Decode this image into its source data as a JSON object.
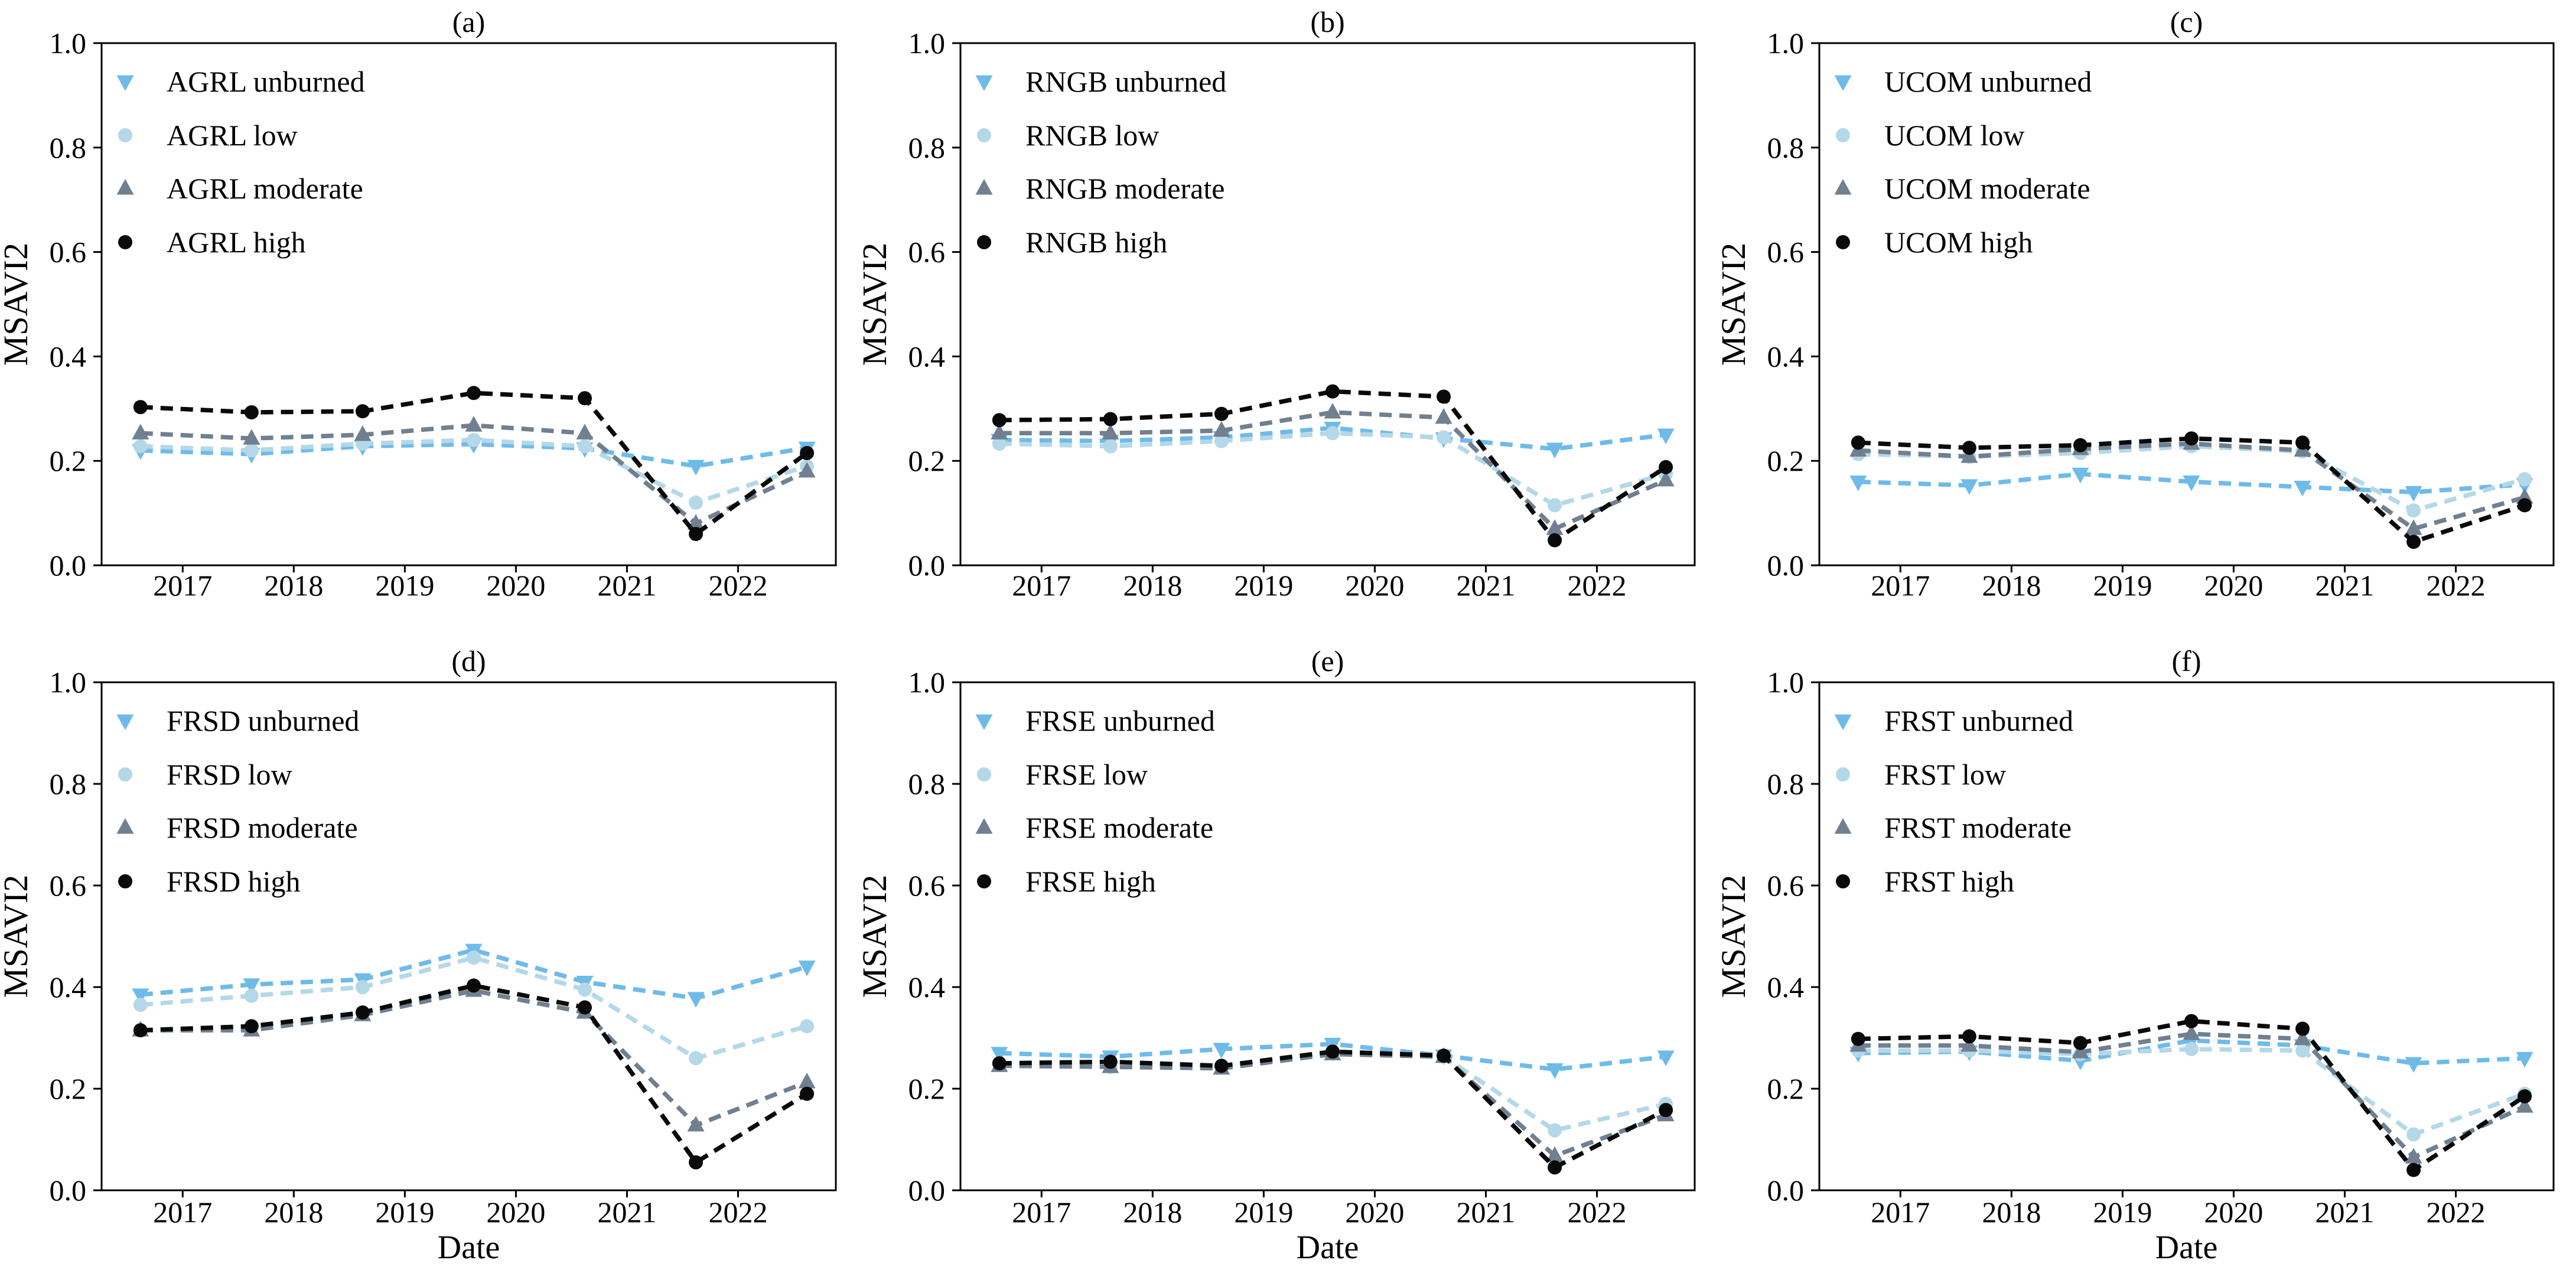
{
  "figure": {
    "ylabel": "MSAVI2",
    "xlabel": "Date",
    "background": "#ffffff",
    "text_color": "#000000",
    "severity_colors": {
      "unburned": "#6EBBEA",
      "low": "#B4D8E8",
      "moderate": "#708090",
      "high": "#0A0A0A"
    },
    "severity_markers": {
      "unburned": "triangle-down",
      "low": "circle",
      "moderate": "triangle-up",
      "high": "circle"
    },
    "line_style": "dashed",
    "legend_position": "upper left"
  },
  "chart_data": [
    {
      "type": "line",
      "panel": "a",
      "title": "(a)",
      "group": "AGRL",
      "xlabel": "",
      "ylabel": "MSAVI2",
      "x": [
        2016.62,
        2017.62,
        2018.62,
        2019.62,
        2020.62,
        2021.62,
        2022.62
      ],
      "xlim": [
        2016.27,
        2022.88
      ],
      "ylim": [
        0.0,
        1.0
      ],
      "x_ticks": [
        2017,
        2018,
        2019,
        2020,
        2021,
        2022
      ],
      "x_tick_labels": [
        "2017",
        "2018",
        "2019",
        "2020",
        "2021",
        "2022"
      ],
      "y_ticks": [
        0.0,
        0.2,
        0.4,
        0.6,
        0.8,
        1.0
      ],
      "y_tick_labels": [
        "0.0",
        "0.2",
        "0.4",
        "0.6",
        "0.8",
        "1.0"
      ],
      "grid": false,
      "series": [
        {
          "name": "AGRL unburned",
          "severity": "unburned",
          "values": [
            0.22,
            0.213,
            0.228,
            0.232,
            0.224,
            0.19,
            0.225
          ]
        },
        {
          "name": "AGRL low",
          "severity": "low",
          "values": [
            0.228,
            0.22,
            0.233,
            0.24,
            0.228,
            0.12,
            0.19
          ]
        },
        {
          "name": "AGRL moderate",
          "severity": "moderate",
          "values": [
            0.253,
            0.243,
            0.25,
            0.268,
            0.253,
            0.08,
            0.18
          ]
        },
        {
          "name": "AGRL high",
          "severity": "high",
          "values": [
            0.303,
            0.293,
            0.295,
            0.33,
            0.32,
            0.06,
            0.215
          ]
        }
      ]
    },
    {
      "type": "line",
      "panel": "b",
      "title": "(b)",
      "group": "RNGB",
      "xlabel": "",
      "ylabel": "MSAVI2",
      "x": [
        2016.62,
        2017.62,
        2018.62,
        2019.62,
        2020.62,
        2021.62,
        2022.62
      ],
      "xlim": [
        2016.27,
        2022.88
      ],
      "ylim": [
        0.0,
        1.0
      ],
      "x_ticks": [
        2017,
        2018,
        2019,
        2020,
        2021,
        2022
      ],
      "x_tick_labels": [
        "2017",
        "2018",
        "2019",
        "2020",
        "2021",
        "2022"
      ],
      "y_ticks": [
        0.0,
        0.2,
        0.4,
        0.6,
        0.8,
        1.0
      ],
      "y_tick_labels": [
        "0.0",
        "0.2",
        "0.4",
        "0.6",
        "0.8",
        "1.0"
      ],
      "grid": false,
      "series": [
        {
          "name": "RNGB unburned",
          "severity": "unburned",
          "values": [
            0.24,
            0.238,
            0.245,
            0.263,
            0.243,
            0.223,
            0.25
          ]
        },
        {
          "name": "RNGB low",
          "severity": "low",
          "values": [
            0.233,
            0.228,
            0.238,
            0.253,
            0.245,
            0.115,
            0.175
          ]
        },
        {
          "name": "RNGB moderate",
          "severity": "moderate",
          "values": [
            0.253,
            0.253,
            0.258,
            0.293,
            0.283,
            0.07,
            0.163
          ]
        },
        {
          "name": "RNGB high",
          "severity": "high",
          "values": [
            0.278,
            0.28,
            0.29,
            0.333,
            0.323,
            0.048,
            0.188
          ]
        }
      ]
    },
    {
      "type": "line",
      "panel": "c",
      "title": "(c)",
      "group": "UCOM",
      "xlabel": "",
      "ylabel": "MSAVI2",
      "x": [
        2016.62,
        2017.62,
        2018.62,
        2019.62,
        2020.62,
        2021.62,
        2022.62
      ],
      "xlim": [
        2016.27,
        2022.88
      ],
      "ylim": [
        0.0,
        1.0
      ],
      "x_ticks": [
        2017,
        2018,
        2019,
        2020,
        2021,
        2022
      ],
      "x_tick_labels": [
        "2017",
        "2018",
        "2019",
        "2020",
        "2021",
        "2022"
      ],
      "y_ticks": [
        0.0,
        0.2,
        0.4,
        0.6,
        0.8,
        1.0
      ],
      "y_tick_labels": [
        "0.0",
        "0.2",
        "0.4",
        "0.6",
        "0.8",
        "1.0"
      ],
      "grid": false,
      "series": [
        {
          "name": "UCOM unburned",
          "severity": "unburned",
          "values": [
            0.16,
            0.153,
            0.175,
            0.16,
            0.15,
            0.14,
            0.155
          ]
        },
        {
          "name": "UCOM low",
          "severity": "low",
          "values": [
            0.213,
            0.208,
            0.215,
            0.228,
            0.218,
            0.105,
            0.165
          ]
        },
        {
          "name": "UCOM moderate",
          "severity": "moderate",
          "values": [
            0.22,
            0.208,
            0.223,
            0.233,
            0.22,
            0.07,
            0.13
          ]
        },
        {
          "name": "UCOM high",
          "severity": "high",
          "values": [
            0.235,
            0.225,
            0.23,
            0.243,
            0.235,
            0.045,
            0.115
          ]
        }
      ]
    },
    {
      "type": "line",
      "panel": "d",
      "title": "(d)",
      "group": "FRSD",
      "xlabel": "Date",
      "ylabel": "MSAVI2",
      "x": [
        2016.62,
        2017.62,
        2018.62,
        2019.62,
        2020.62,
        2021.62,
        2022.62
      ],
      "xlim": [
        2016.27,
        2022.88
      ],
      "ylim": [
        0.0,
        1.0
      ],
      "x_ticks": [
        2017,
        2018,
        2019,
        2020,
        2021,
        2022
      ],
      "x_tick_labels": [
        "2017",
        "2018",
        "2019",
        "2020",
        "2021",
        "2022"
      ],
      "y_ticks": [
        0.0,
        0.2,
        0.4,
        0.6,
        0.8,
        1.0
      ],
      "y_tick_labels": [
        "0.0",
        "0.2",
        "0.4",
        "0.6",
        "0.8",
        "1.0"
      ],
      "grid": false,
      "series": [
        {
          "name": "FRSD unburned",
          "severity": "unburned",
          "values": [
            0.385,
            0.405,
            0.415,
            0.473,
            0.41,
            0.378,
            0.44
          ]
        },
        {
          "name": "FRSD low",
          "severity": "low",
          "values": [
            0.365,
            0.383,
            0.4,
            0.458,
            0.395,
            0.26,
            0.323
          ]
        },
        {
          "name": "FRSD moderate",
          "severity": "moderate",
          "values": [
            0.315,
            0.315,
            0.345,
            0.393,
            0.35,
            0.128,
            0.213
          ]
        },
        {
          "name": "FRSD high",
          "severity": "high",
          "values": [
            0.315,
            0.323,
            0.35,
            0.403,
            0.36,
            0.055,
            0.19
          ]
        }
      ]
    },
    {
      "type": "line",
      "panel": "e",
      "title": "(e)",
      "group": "FRSE",
      "xlabel": "Date",
      "ylabel": "MSAVI2",
      "x": [
        2016.62,
        2017.62,
        2018.62,
        2019.62,
        2020.62,
        2021.62,
        2022.62
      ],
      "xlim": [
        2016.27,
        2022.88
      ],
      "ylim": [
        0.0,
        1.0
      ],
      "x_ticks": [
        2017,
        2018,
        2019,
        2020,
        2021,
        2022
      ],
      "x_tick_labels": [
        "2017",
        "2018",
        "2019",
        "2020",
        "2021",
        "2022"
      ],
      "y_ticks": [
        0.0,
        0.2,
        0.4,
        0.6,
        0.8,
        1.0
      ],
      "y_tick_labels": [
        "0.0",
        "0.2",
        "0.4",
        "0.6",
        "0.8",
        "1.0"
      ],
      "grid": false,
      "series": [
        {
          "name": "FRSE unburned",
          "severity": "unburned",
          "values": [
            0.27,
            0.263,
            0.278,
            0.288,
            0.265,
            0.238,
            0.263
          ]
        },
        {
          "name": "FRSE low",
          "severity": "low",
          "values": [
            0.25,
            0.243,
            0.245,
            0.27,
            0.263,
            0.118,
            0.17
          ]
        },
        {
          "name": "FRSE moderate",
          "severity": "moderate",
          "values": [
            0.245,
            0.243,
            0.24,
            0.268,
            0.263,
            0.068,
            0.148
          ]
        },
        {
          "name": "FRSE high",
          "severity": "high",
          "values": [
            0.25,
            0.253,
            0.245,
            0.273,
            0.265,
            0.045,
            0.158
          ]
        }
      ]
    },
    {
      "type": "line",
      "panel": "f",
      "title": "(f)",
      "group": "FRST",
      "xlabel": "Date",
      "ylabel": "MSAVI2",
      "x": [
        2016.62,
        2017.62,
        2018.62,
        2019.62,
        2020.62,
        2021.62,
        2022.62
      ],
      "xlim": [
        2016.27,
        2022.88
      ],
      "ylim": [
        0.0,
        1.0
      ],
      "x_ticks": [
        2017,
        2018,
        2019,
        2020,
        2021,
        2022
      ],
      "x_tick_labels": [
        "2017",
        "2018",
        "2019",
        "2020",
        "2021",
        "2022"
      ],
      "y_ticks": [
        0.0,
        0.2,
        0.4,
        0.6,
        0.8,
        1.0
      ],
      "y_tick_labels": [
        "0.0",
        "0.2",
        "0.4",
        "0.6",
        "0.8",
        "1.0"
      ],
      "grid": false,
      "series": [
        {
          "name": "FRST unburned",
          "severity": "unburned",
          "values": [
            0.27,
            0.273,
            0.255,
            0.295,
            0.285,
            0.25,
            0.26
          ]
        },
        {
          "name": "FRST low",
          "severity": "low",
          "values": [
            0.275,
            0.275,
            0.268,
            0.278,
            0.275,
            0.11,
            0.19
          ]
        },
        {
          "name": "FRST moderate",
          "severity": "moderate",
          "values": [
            0.285,
            0.285,
            0.272,
            0.308,
            0.298,
            0.065,
            0.165
          ]
        },
        {
          "name": "FRST high",
          "severity": "high",
          "values": [
            0.298,
            0.303,
            0.29,
            0.333,
            0.318,
            0.04,
            0.185
          ]
        }
      ]
    }
  ]
}
